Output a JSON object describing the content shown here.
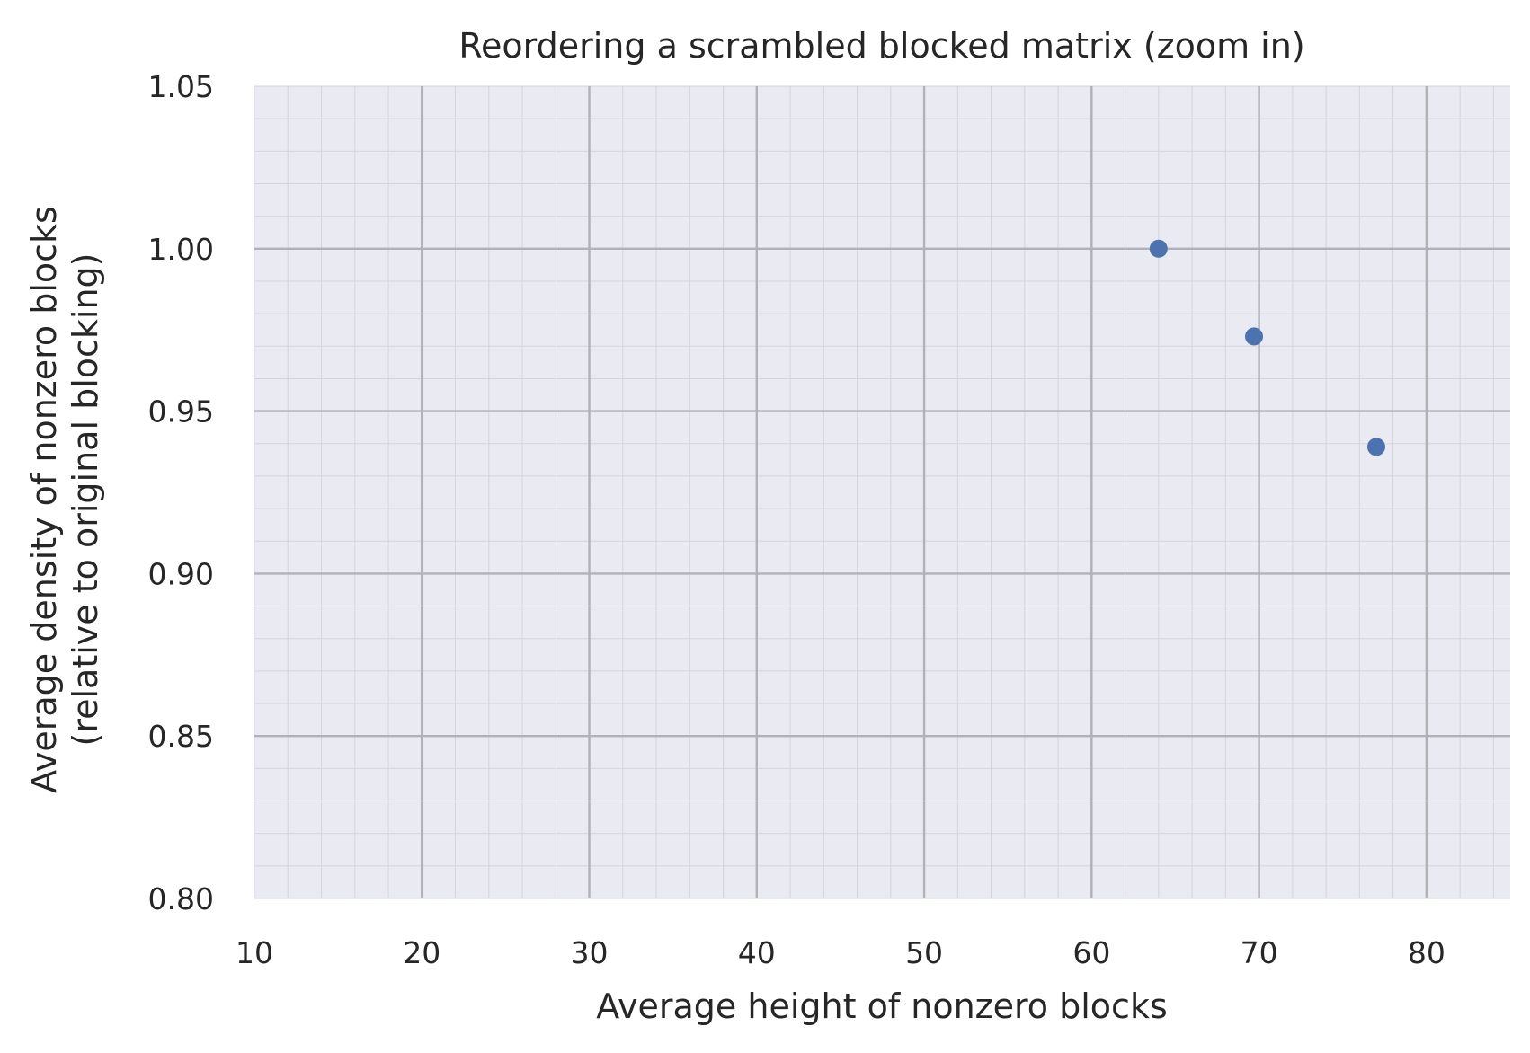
{
  "chart_data": {
    "type": "scatter",
    "title": "Reordering a scrambled blocked matrix (zoom in)",
    "xlabel": "Average height of nonzero blocks",
    "ylabel_lines": [
      "Average density of nonzero blocks",
      "(relative to original blocking)"
    ],
    "xlim": [
      10,
      85
    ],
    "ylim": [
      0.8,
      1.05
    ],
    "x_ticks": [
      10,
      20,
      30,
      40,
      50,
      60,
      70,
      80
    ],
    "x_tick_labels": [
      "10",
      "20",
      "30",
      "40",
      "50",
      "60",
      "70",
      "80"
    ],
    "y_ticks": [
      0.8,
      0.85,
      0.9,
      0.95,
      1.0,
      1.05
    ],
    "y_tick_labels": [
      "0.80",
      "0.85",
      "0.90",
      "0.95",
      "1.00",
      "1.05"
    ],
    "x_minor_step": 2,
    "y_minor_step": 0.01,
    "grid": true,
    "minor_grid": true,
    "legend": false,
    "series": [
      {
        "x": [
          64.0,
          69.7,
          77.0
        ],
        "y": [
          1.0,
          0.973,
          0.939
        ]
      }
    ],
    "colors": {
      "background": "#eaeaf2",
      "marker": "#4c72b0",
      "major_grid": "#b1b1b6",
      "minor_grid": "#d4d4da",
      "text": "#262626"
    }
  }
}
